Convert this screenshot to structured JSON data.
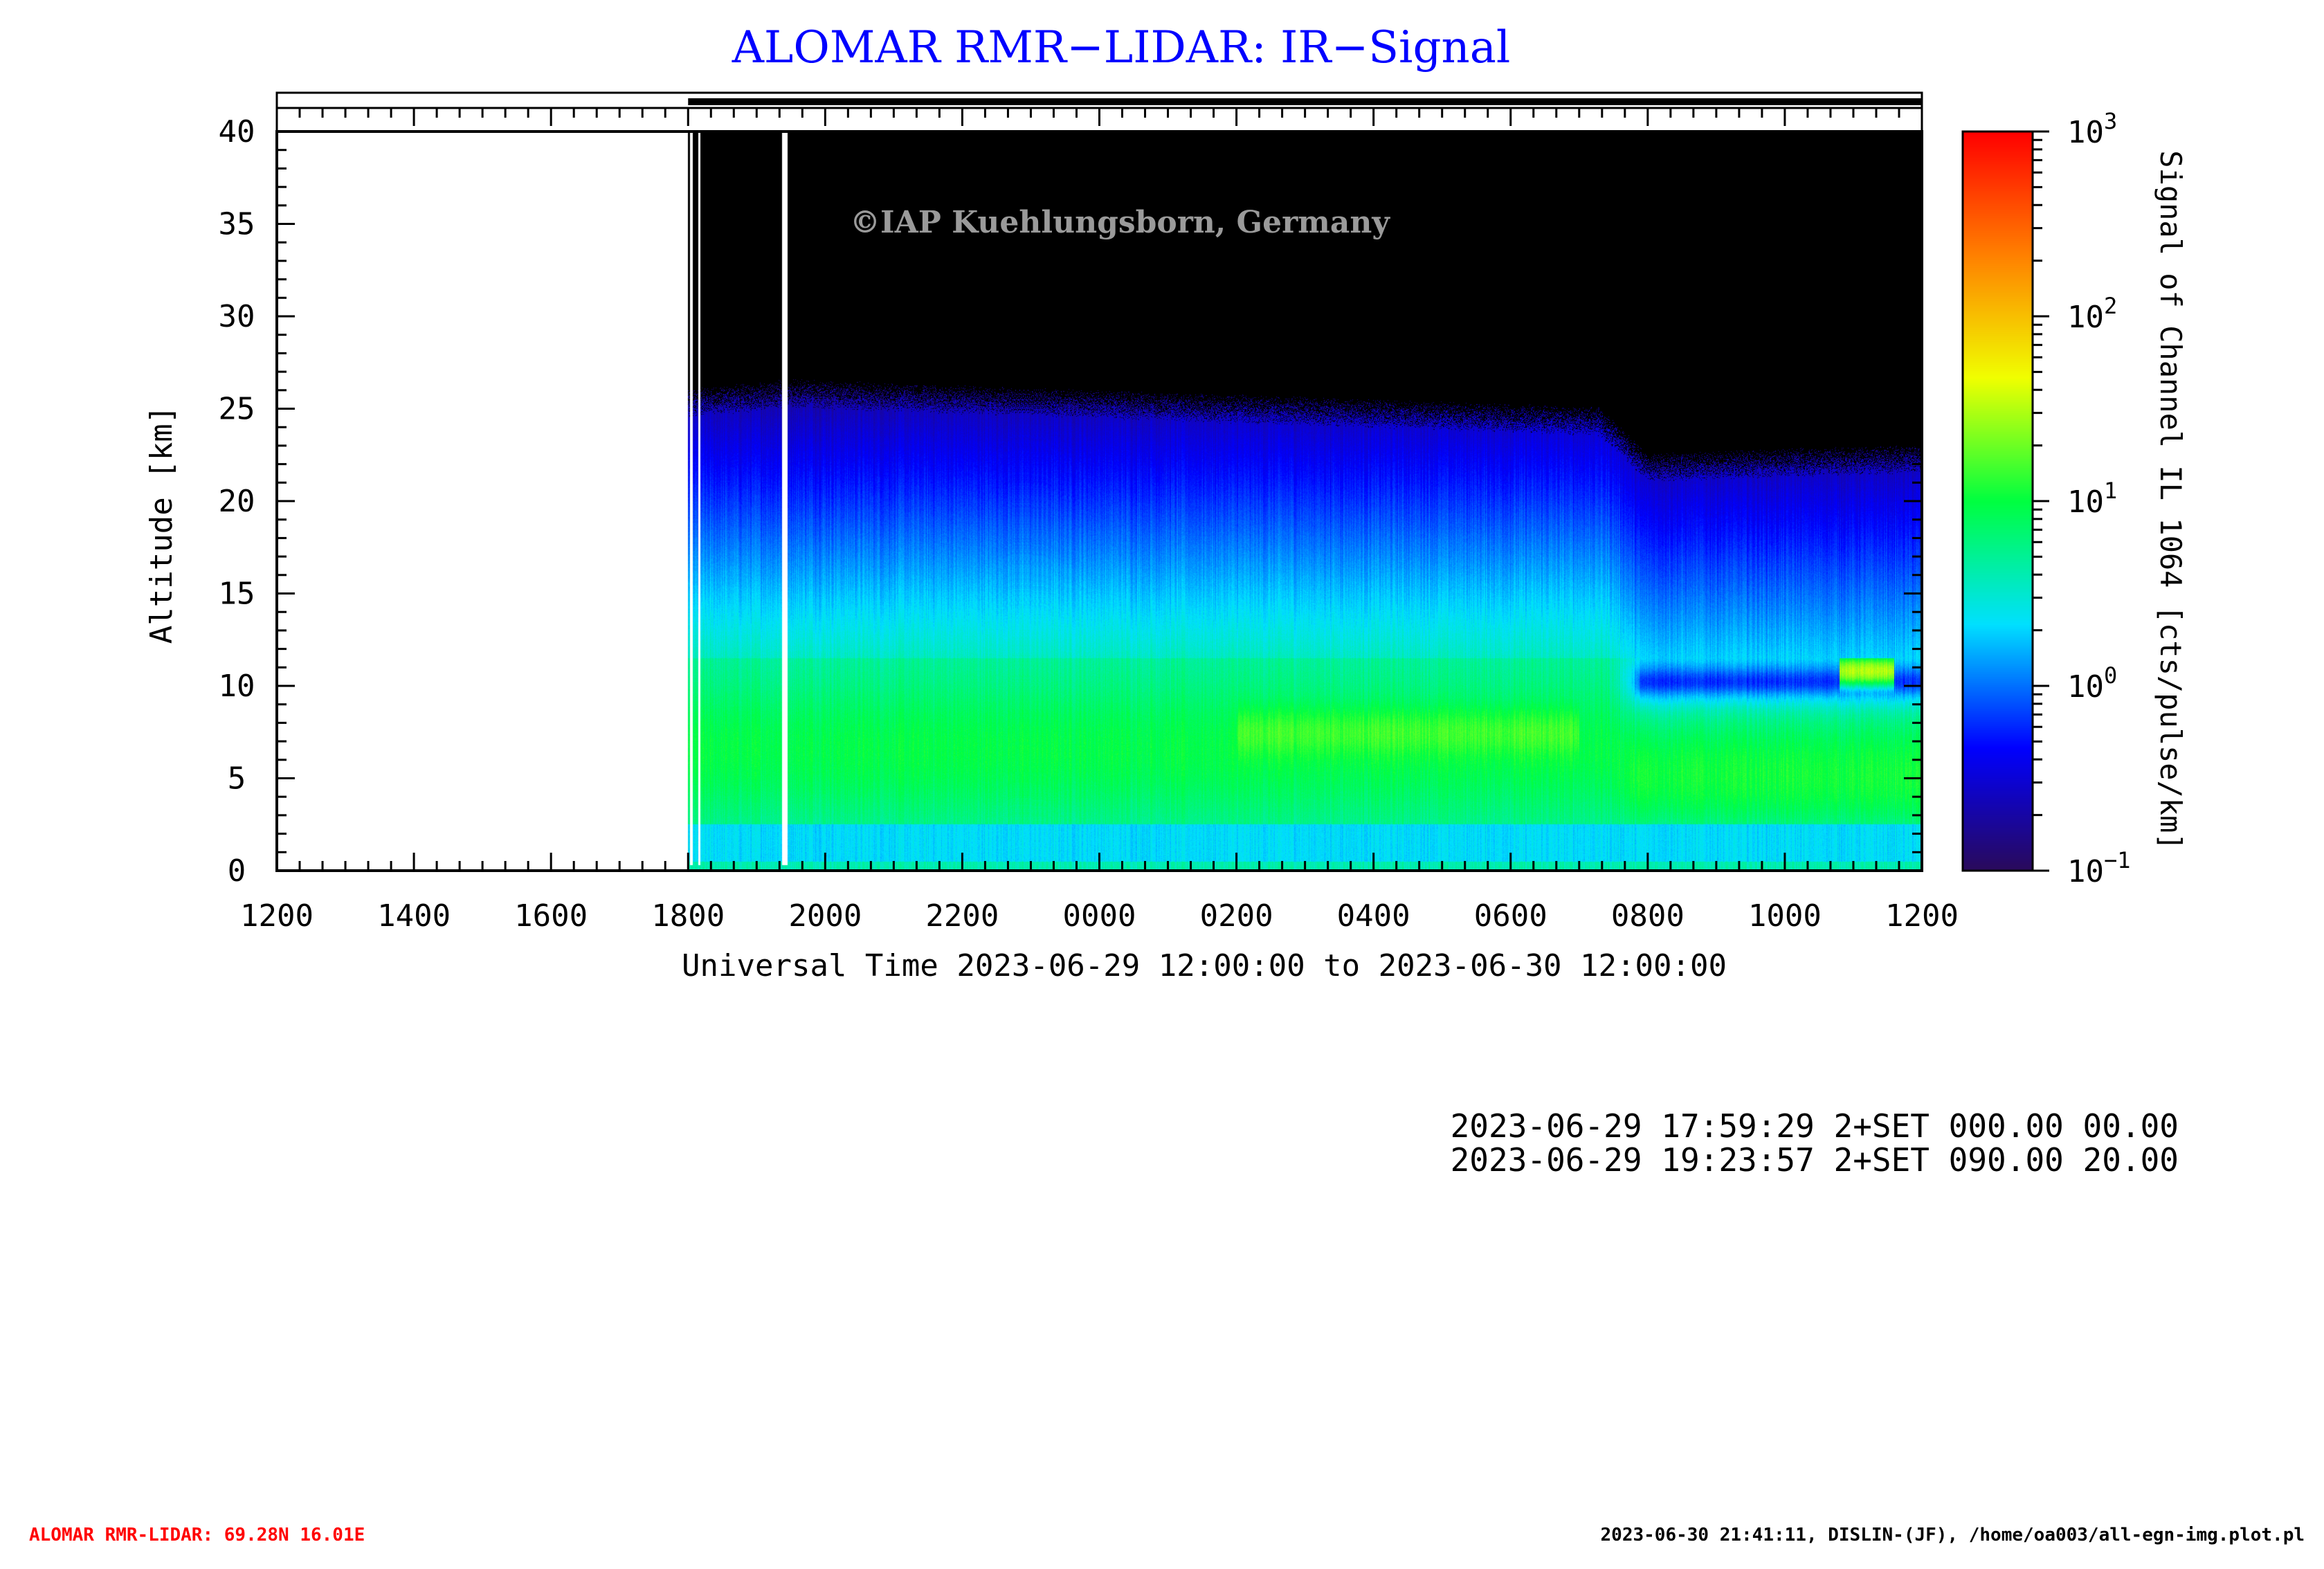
{
  "chart_data": {
    "type": "heatmap",
    "title": "ALOMAR RMR−LIDAR: IR−Signal",
    "xlabel": "Universal Time 2023-06-29 12:00:00 to 2023-06-30 12:00:00",
    "ylabel": "Altitude [km]",
    "watermark": "©IAP Kuehlungsborn, Germany",
    "x_tick_labels": [
      "1200",
      "1400",
      "1600",
      "1800",
      "2000",
      "2200",
      "0000",
      "0200",
      "0400",
      "0600",
      "0800",
      "1000",
      "1200"
    ],
    "x_range_hours": [
      0,
      24
    ],
    "y_ticks": [
      0,
      5,
      10,
      15,
      20,
      25,
      30,
      35,
      40
    ],
    "ylim": [
      0,
      40
    ],
    "data_start_hour": 6.0,
    "data_gaps_hours": [
      [
        6.03,
        6.07
      ],
      [
        6.15,
        6.18
      ],
      [
        7.37,
        7.45
      ]
    ],
    "signal_top_km": [
      {
        "hour": 6.0,
        "km": 24.5
      },
      {
        "hour": 7.5,
        "km": 25.0
      },
      {
        "hour": 19.3,
        "km": 23.5
      },
      {
        "hour": 20.0,
        "km": 21.0
      },
      {
        "hour": 24.0,
        "km": 21.5
      }
    ],
    "colorbar": {
      "label": "Signal of Channel IL 1064 [cts/pulse/km]",
      "scale": "log",
      "range": [
        0.1,
        1000
      ],
      "tick_labels": [
        {
          "base": "10",
          "exp": "−1",
          "value": 0.1
        },
        {
          "base": "10",
          "exp": "0",
          "value": 1
        },
        {
          "base": "10",
          "exp": "1",
          "value": 10
        },
        {
          "base": "10",
          "exp": "2",
          "value": 100
        },
        {
          "base": "10",
          "exp": "3",
          "value": 1000
        }
      ],
      "colors": [
        "#2a0a5a",
        "#0000ff",
        "#00e0ff",
        "#00ff40",
        "#f0ff00",
        "#ff8000",
        "#ff0000"
      ]
    },
    "grid": false
  },
  "measurement_log": [
    "2023-06-29 17:59:29 2+SET 000.00 00.00",
    "2023-06-29 19:23:57 2+SET 090.00 20.00"
  ],
  "footer": {
    "left": "ALOMAR RMR-LIDAR: 69.28N 16.01E",
    "left_color": "#ff0000",
    "right": "2023-06-30 21:41:11, DISLIN-(JF), /home/oa003/all-egn-img.plot.pl"
  },
  "colors": {
    "title": "#0000ff",
    "watermark": "#9a9a9a",
    "background": "#000000"
  }
}
